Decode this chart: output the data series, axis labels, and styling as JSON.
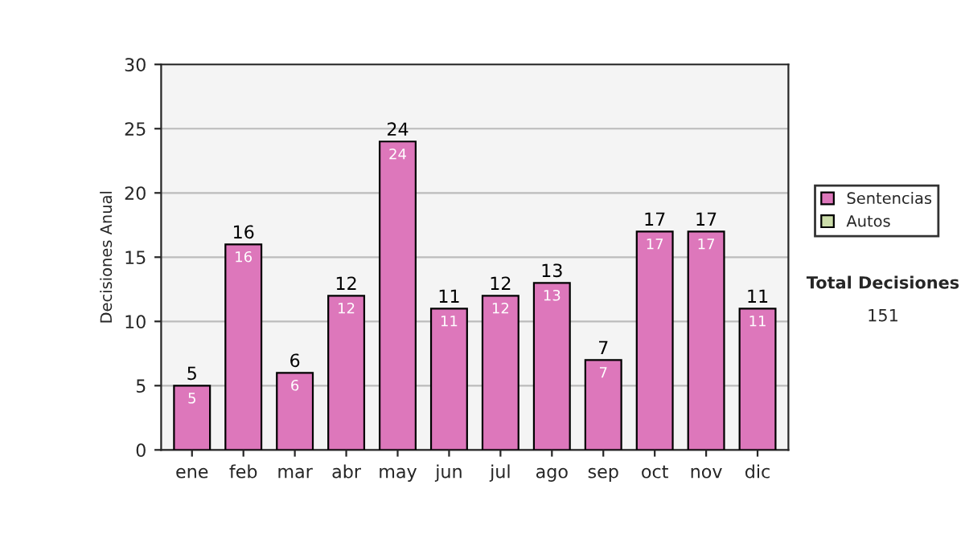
{
  "chart_data": {
    "type": "bar",
    "categories": [
      "ene",
      "feb",
      "mar",
      "abr",
      "may",
      "jun",
      "jul",
      "ago",
      "sep",
      "oct",
      "nov",
      "dic"
    ],
    "ylabel": "Decisiones Anual",
    "series": [
      {
        "name": "Sentencias",
        "color": "#dd77bb",
        "values": [
          5,
          16,
          6,
          12,
          24,
          11,
          12,
          13,
          7,
          17,
          17,
          11
        ],
        "value_labels": [
          "5",
          "16",
          "6",
          "12",
          "24",
          "11",
          "12",
          "13",
          "7",
          "17",
          "17",
          "11"
        ]
      },
      {
        "name": "Autos",
        "color": "#ccddaa",
        "values": [
          null,
          null,
          null,
          null,
          null,
          null,
          null,
          null,
          null,
          null,
          null,
          null
        ]
      }
    ],
    "ylim": [
      0,
      30
    ],
    "yticks": [
      0,
      5,
      10,
      15,
      20,
      25,
      30
    ],
    "grid": "y",
    "legend": "right",
    "annotations": [
      "Total Decisiones",
      "151",
      {
        "text": "5",
        "x": "ene",
        "y": 5
      },
      {
        "text": "16",
        "x": "feb",
        "y": 16
      },
      {
        "text": "6",
        "x": "mar",
        "y": 6
      },
      {
        "text": "12",
        "x": "abr",
        "y": 12
      },
      {
        "text": "24",
        "x": "may",
        "y": 24
      },
      {
        "text": "11",
        "x": "jun",
        "y": 11
      },
      {
        "text": "12",
        "x": "jul",
        "y": 12
      },
      {
        "text": "13",
        "x": "ago",
        "y": 13
      },
      {
        "text": "7",
        "x": "sep",
        "y": 7
      },
      {
        "text": "17",
        "x": "oct",
        "y": 17
      },
      {
        "text": "17",
        "x": "nov",
        "y": 17
      },
      {
        "text": "11",
        "x": "dic",
        "y": 11
      }
    ]
  }
}
